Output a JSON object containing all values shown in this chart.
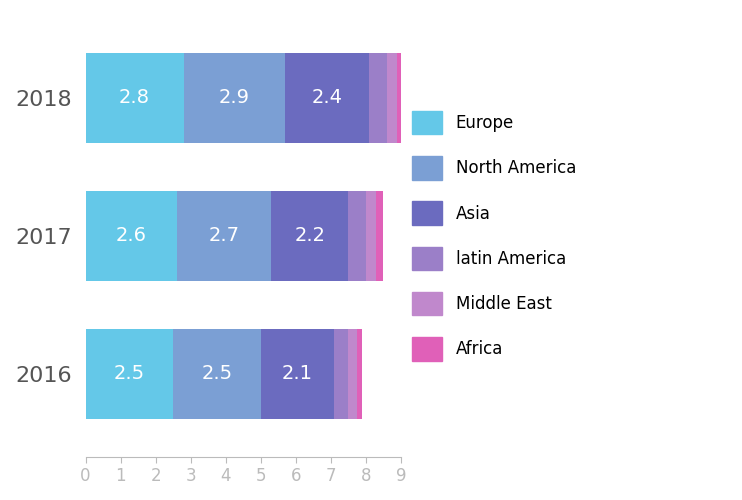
{
  "years": [
    "2018",
    "2017",
    "2016"
  ],
  "segments": [
    "Europe",
    "North America",
    "Asia",
    "latin America",
    "Middle East",
    "Africa"
  ],
  "colors": [
    "#64c8e8",
    "#7b9fd4",
    "#6b6bbf",
    "#9b7fc8",
    "#c088cc",
    "#e060b8"
  ],
  "values": {
    "2018": [
      2.8,
      2.9,
      2.4,
      0.5,
      0.3,
      0.2
    ],
    "2017": [
      2.6,
      2.7,
      2.2,
      0.5,
      0.3,
      0.2
    ],
    "2016": [
      2.5,
      2.5,
      2.1,
      0.4,
      0.25,
      0.15
    ]
  },
  "label_segments": [
    0,
    1,
    2
  ],
  "xlim": [
    0,
    9
  ],
  "xticks": [
    0,
    1,
    2,
    3,
    4,
    5,
    6,
    7,
    8,
    9
  ],
  "bar_height": 0.65,
  "bar_gap": 1.5,
  "label_fontsize": 14,
  "tick_fontsize": 12,
  "legend_fontsize": 12,
  "background_color": "#ffffff",
  "text_color": "#555555"
}
